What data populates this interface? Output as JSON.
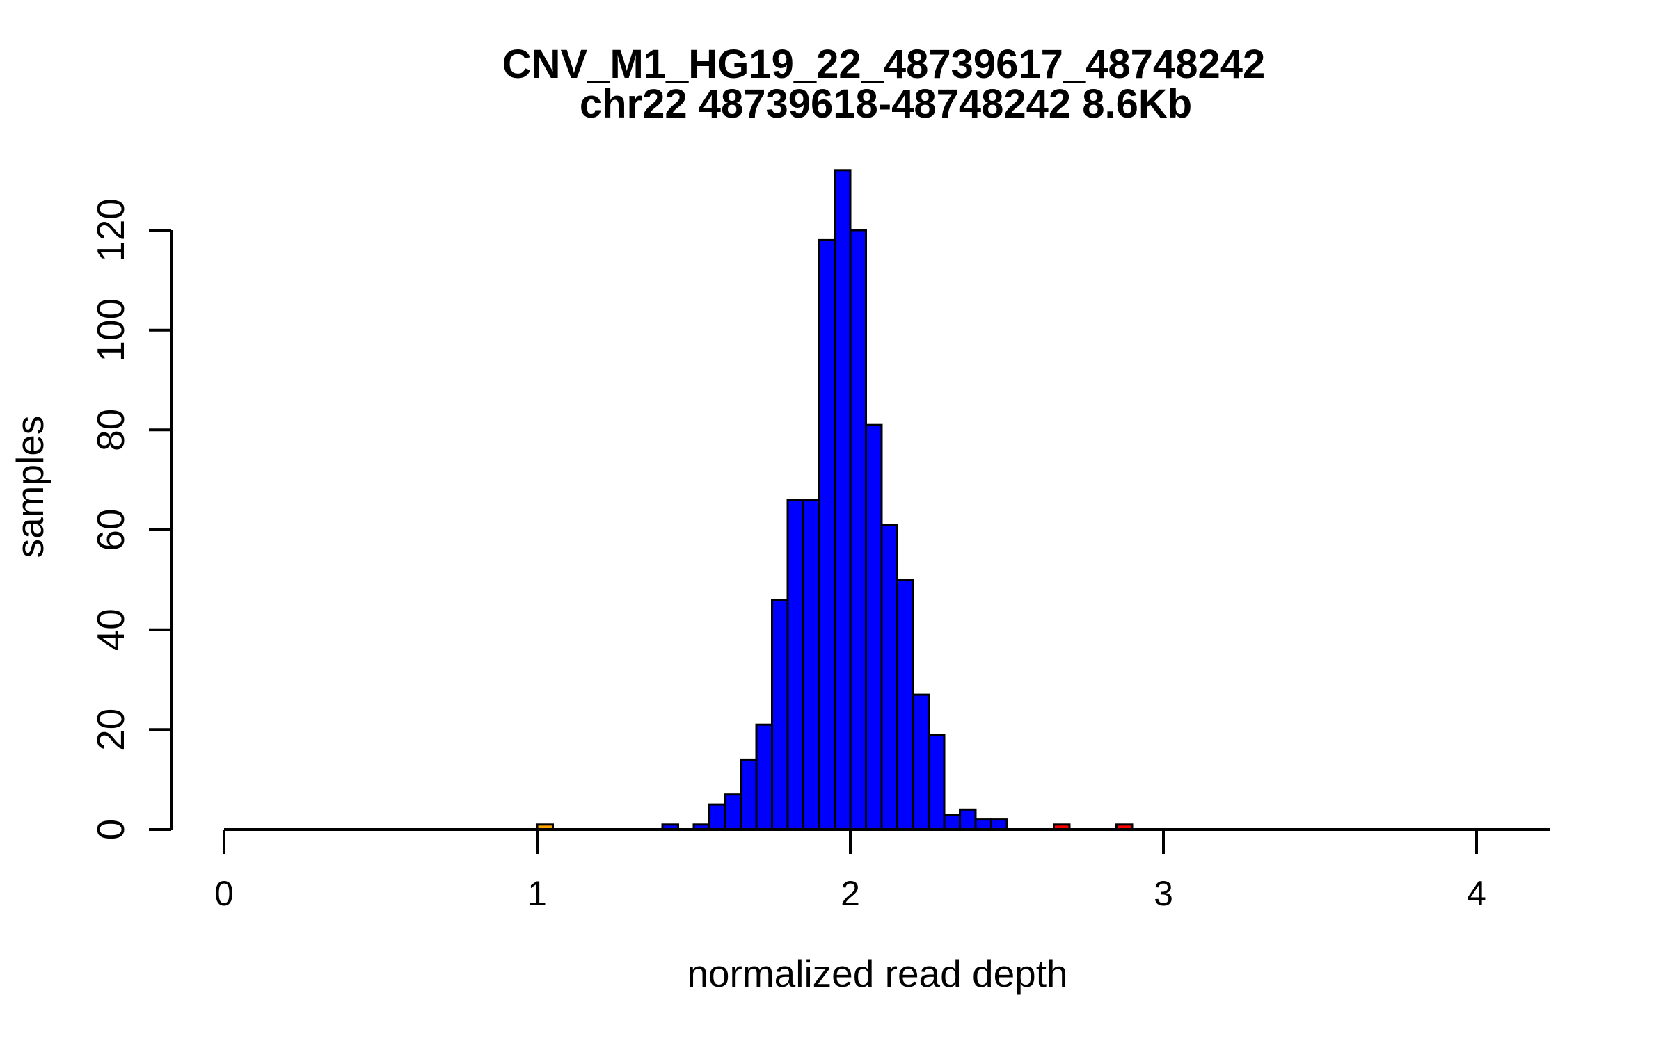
{
  "title": {
    "line1": "CNV_M1_HG19_22_48739617_48748242",
    "line2": "chr22 48739618-48748242 8.6Kb"
  },
  "chart_data": {
    "type": "bar",
    "subtype": "histogram",
    "title": "CNV_M1_HG19_22_48739617_48748242",
    "subtitle": "chr22 48739618-48748242 8.6Kb",
    "xlabel": "normalized read depth",
    "ylabel": "samples",
    "xlim": [
      0,
      4.2
    ],
    "ylim": [
      0,
      132
    ],
    "x_ticks": [
      0,
      1,
      2,
      3,
      4
    ],
    "y_ticks": [
      0,
      20,
      40,
      60,
      80,
      100,
      120
    ],
    "grid": false,
    "legend": false,
    "bin_width": 0.05,
    "colors": {
      "default_fill": "#0000FF",
      "outline": "#000000",
      "lower_outlier_fill": "#FFA500",
      "upper_outlier_fill": "#FF0000"
    },
    "bars": [
      {
        "x": 1.0,
        "count": 1,
        "color": "#FFA500"
      },
      {
        "x": 1.4,
        "count": 1,
        "color": "#0000FF"
      },
      {
        "x": 1.5,
        "count": 1,
        "color": "#0000FF"
      },
      {
        "x": 1.55,
        "count": 5,
        "color": "#0000FF"
      },
      {
        "x": 1.6,
        "count": 7,
        "color": "#0000FF"
      },
      {
        "x": 1.65,
        "count": 14,
        "color": "#0000FF"
      },
      {
        "x": 1.7,
        "count": 21,
        "color": "#0000FF"
      },
      {
        "x": 1.75,
        "count": 46,
        "color": "#0000FF"
      },
      {
        "x": 1.8,
        "count": 66,
        "color": "#0000FF"
      },
      {
        "x": 1.85,
        "count": 66,
        "color": "#0000FF"
      },
      {
        "x": 1.9,
        "count": 118,
        "color": "#0000FF"
      },
      {
        "x": 1.95,
        "count": 132,
        "color": "#0000FF"
      },
      {
        "x": 2.0,
        "count": 120,
        "color": "#0000FF"
      },
      {
        "x": 2.05,
        "count": 81,
        "color": "#0000FF"
      },
      {
        "x": 2.1,
        "count": 61,
        "color": "#0000FF"
      },
      {
        "x": 2.15,
        "count": 50,
        "color": "#0000FF"
      },
      {
        "x": 2.2,
        "count": 27,
        "color": "#0000FF"
      },
      {
        "x": 2.25,
        "count": 19,
        "color": "#0000FF"
      },
      {
        "x": 2.3,
        "count": 3,
        "color": "#0000FF"
      },
      {
        "x": 2.35,
        "count": 4,
        "color": "#0000FF"
      },
      {
        "x": 2.4,
        "count": 2,
        "color": "#0000FF"
      },
      {
        "x": 2.45,
        "count": 2,
        "color": "#0000FF"
      },
      {
        "x": 2.65,
        "count": 1,
        "color": "#FF0000"
      },
      {
        "x": 2.85,
        "count": 1,
        "color": "#FF0000"
      }
    ]
  }
}
